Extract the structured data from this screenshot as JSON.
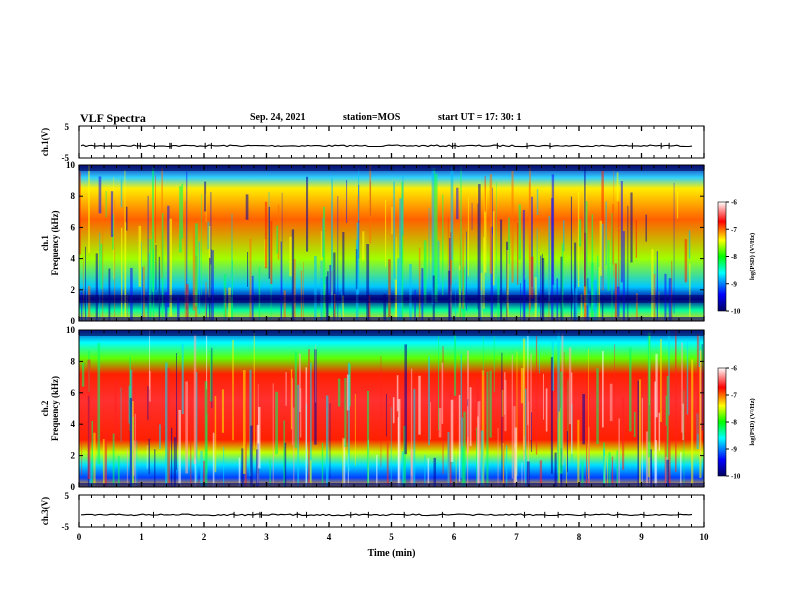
{
  "header": {
    "title": "VLF Spectra",
    "date": "Sep. 24, 2021",
    "station": "station=MOS",
    "start": "start  UT  =   17: 30: 1"
  },
  "chart_data": [
    {
      "type": "line",
      "panel": "ch1-waveform",
      "ylabel": "ch.1(V)",
      "yticks": [
        "5",
        "-5"
      ],
      "ylim": [
        -5,
        5
      ],
      "xlim": [
        0,
        10
      ],
      "series": [
        {
          "values_description_level": -1.2
        }
      ]
    },
    {
      "type": "heatmap",
      "panel": "ch1-spectrogram",
      "ylabel": "ch.1\nFrequency (kHz)",
      "ylabel_line1": "ch.1",
      "ylabel_line2": "Frequency (kHz)",
      "yticks": [
        "0",
        "2",
        "4",
        "6",
        "8",
        "10"
      ],
      "ylim": [
        0,
        10
      ],
      "xlim": [
        0,
        10
      ],
      "colorbar": {
        "label": "log(PSD) (V²/Hz)",
        "ticks": [
          "-6",
          "-7",
          "-8",
          "-9",
          "-10"
        ],
        "range": [
          -10,
          -6
        ]
      }
    },
    {
      "type": "heatmap",
      "panel": "ch2-spectrogram",
      "ylabel_line1": "ch.2",
      "ylabel_line2": "Frequency (kHz)",
      "yticks": [
        "0",
        "2",
        "4",
        "6",
        "8",
        "10"
      ],
      "ylim": [
        0,
        10
      ],
      "xlim": [
        0,
        10
      ],
      "colorbar": {
        "label": "log(PSD) (V²/Hz)",
        "ticks": [
          "-6",
          "-7",
          "-8",
          "-9",
          "-10"
        ],
        "range": [
          -10,
          -6
        ]
      }
    },
    {
      "type": "line",
      "panel": "ch3-waveform",
      "ylabel": "ch.3(V)",
      "yticks": [
        "5",
        "-5"
      ],
      "ylim": [
        -5,
        5
      ],
      "xlim": [
        0,
        10
      ],
      "series": [
        {
          "values_description_level": -1.2
        }
      ]
    }
  ],
  "xaxis": {
    "label": "Time  (min)",
    "ticks": [
      "0",
      "1",
      "2",
      "3",
      "4",
      "5",
      "6",
      "7",
      "8",
      "9",
      "10"
    ]
  },
  "colorbar_label_text": "log(PSD) (V",
  "colorbar_label_sup": "2",
  "colorbar_label_tail": "/Hz)",
  "colors": {
    "min": "#00008b",
    "low": "#0000ff",
    "mid1": "#00ffff",
    "mid2": "#00ff00",
    "mid3": "#ffff00",
    "high": "#ff0000",
    "max": "#ffffff"
  }
}
